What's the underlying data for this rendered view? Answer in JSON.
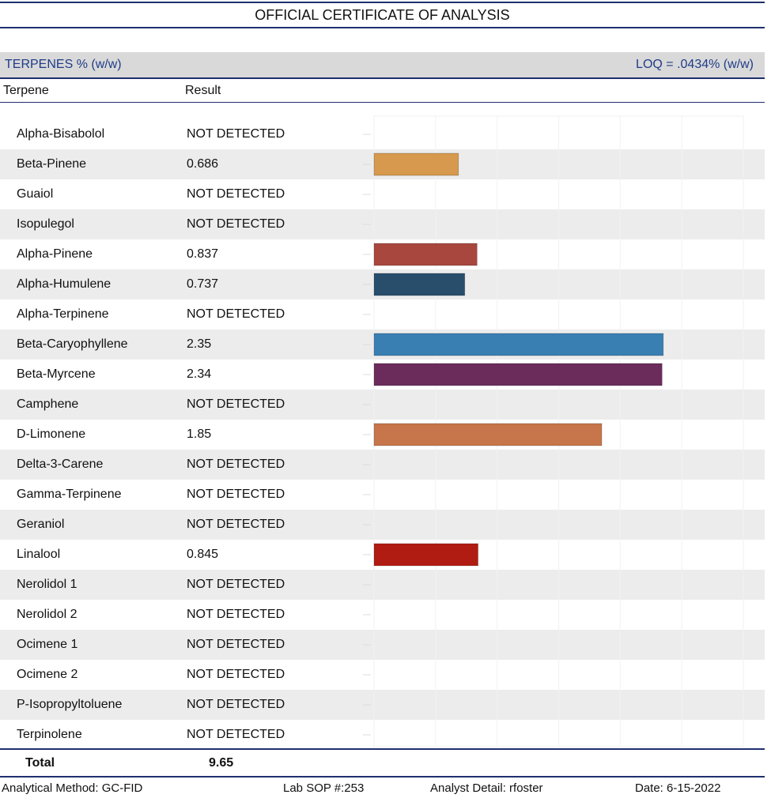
{
  "header": {
    "title": "OFFICIAL CERTIFICATE OF ANALYSIS"
  },
  "section": {
    "name": "TERPENES % (w/w)",
    "loq": "LOQ = .0434% (w/w)"
  },
  "columns": {
    "terpene": "Terpene",
    "result": "Result"
  },
  "terpenes": [
    {
      "name": "Alpha-Bisabolol",
      "result": "NOT DETECTED"
    },
    {
      "name": "Beta-Pinene",
      "result": "0.686"
    },
    {
      "name": "Guaiol",
      "result": "NOT DETECTED"
    },
    {
      "name": "Isopulegol",
      "result": "NOT DETECTED"
    },
    {
      "name": "Alpha-Pinene",
      "result": "0.837"
    },
    {
      "name": "Alpha-Humulene",
      "result": "0.737"
    },
    {
      "name": "Alpha-Terpinene",
      "result": "NOT DETECTED"
    },
    {
      "name": "Beta-Caryophyllene",
      "result": "2.35"
    },
    {
      "name": "Beta-Myrcene",
      "result": "2.34"
    },
    {
      "name": "Camphene",
      "result": "NOT DETECTED"
    },
    {
      "name": "D-Limonene",
      "result": "1.85"
    },
    {
      "name": "Delta-3-Carene",
      "result": "NOT DETECTED"
    },
    {
      "name": "Gamma-Terpinene",
      "result": "NOT DETECTED"
    },
    {
      "name": "Geraniol",
      "result": "NOT DETECTED"
    },
    {
      "name": "Linalool",
      "result": "0.845"
    },
    {
      "name": "Nerolidol 1",
      "result": "NOT DETECTED"
    },
    {
      "name": "Nerolidol 2",
      "result": "NOT DETECTED"
    },
    {
      "name": "Ocimene 1",
      "result": "NOT DETECTED"
    },
    {
      "name": "Ocimene 2",
      "result": "NOT DETECTED"
    },
    {
      "name": "P-Isopropyltoluene",
      "result": "NOT DETECTED"
    },
    {
      "name": "Terpinolene",
      "result": "NOT DETECTED"
    }
  ],
  "total": {
    "label": "Total",
    "value": "9.65"
  },
  "footer": {
    "method": "Analytical Method: GC-FID",
    "sop": "Lab SOP #:253",
    "analyst": "Analyst Detail: rfoster",
    "date": "Date: 6-15-2022"
  },
  "chart_data": {
    "type": "bar",
    "orientation": "horizontal",
    "categories": [
      "Alpha-Bisabolol",
      "Beta-Pinene",
      "Guaiol",
      "Isopulegol",
      "Alpha-Pinene",
      "Alpha-Humulene",
      "Alpha-Terpinene",
      "Beta-Caryophyllene",
      "Beta-Myrcene",
      "Camphene",
      "D-Limonene",
      "Delta-3-Carene",
      "Gamma-Terpinene",
      "Geraniol",
      "Linalool",
      "Nerolidol 1",
      "Nerolidol 2",
      "Ocimene 1",
      "Ocimene 2",
      "P-Isopropyltoluene",
      "Terpinolene"
    ],
    "values": [
      0,
      0.686,
      0,
      0,
      0.837,
      0.737,
      0,
      2.35,
      2.34,
      0,
      1.85,
      0,
      0,
      0,
      0.845,
      0,
      0,
      0,
      0,
      0,
      0
    ],
    "colors": [
      "#d6994d",
      "#d6994d",
      "#d6994d",
      "#d6994d",
      "#a8473e",
      "#284e6c",
      "#d6994d",
      "#3a7fb2",
      "#6b2c5c",
      "#d6994d",
      "#c6764a",
      "#d6994d",
      "#d6994d",
      "#d6994d",
      "#b01c12",
      "#d6994d",
      "#d6994d",
      "#d6994d",
      "#d6994d",
      "#d6994d",
      "#d6994d"
    ],
    "xlim": [
      0,
      3
    ],
    "grid": true
  }
}
